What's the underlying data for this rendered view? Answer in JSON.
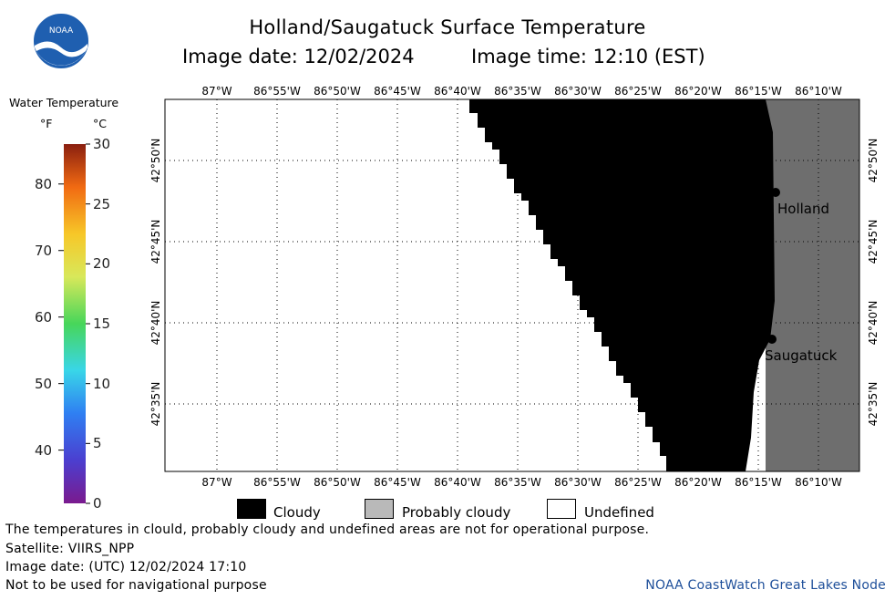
{
  "header": {
    "title": "Holland/Saugatuck Surface Temperature",
    "date_line": "Image date: 12/02/2024",
    "time_line": "Image time: 12:10 (EST)",
    "logo_text": "NOAA"
  },
  "colorbar": {
    "title": "Water Temperature",
    "unit_f": "°F",
    "unit_c": "°C",
    "f_ticks": [
      "80",
      "70",
      "60",
      "50",
      "40"
    ],
    "c_ticks": [
      "30",
      "25",
      "20",
      "15",
      "10",
      "5",
      "0"
    ]
  },
  "map": {
    "lon_labels": [
      "87°W",
      "86°55'W",
      "86°50'W",
      "86°45'W",
      "86°40'W",
      "86°35'W",
      "86°30'W",
      "86°25'W",
      "86°20'W",
      "86°15'W",
      "86°10'W"
    ],
    "lat_labels": [
      "42°50'N",
      "42°45'N",
      "42°40'N",
      "42°35'N"
    ],
    "cities": [
      {
        "name": "Holland"
      },
      {
        "name": "Saugatuck"
      }
    ]
  },
  "legend": {
    "cloudy": "Cloudy",
    "probably_cloudy": "Probably cloudy",
    "undefined": "Undefined"
  },
  "footer": {
    "line1": "The temperatures in clould, probably cloudy and undefined areas are not for operational purpose.",
    "line2": "Satellite: VIIRS_NPP",
    "line3": "Image date: (UTC) 12/02/2024  17:10",
    "line4": "Not to be used for navigational purpose",
    "credit": "NOAA CoastWatch Great Lakes Node"
  },
  "colors": {
    "cloudy": "#000000",
    "land": "#6e6e6e",
    "undefined": "#ffffff",
    "credit": "#1e4f9a"
  }
}
